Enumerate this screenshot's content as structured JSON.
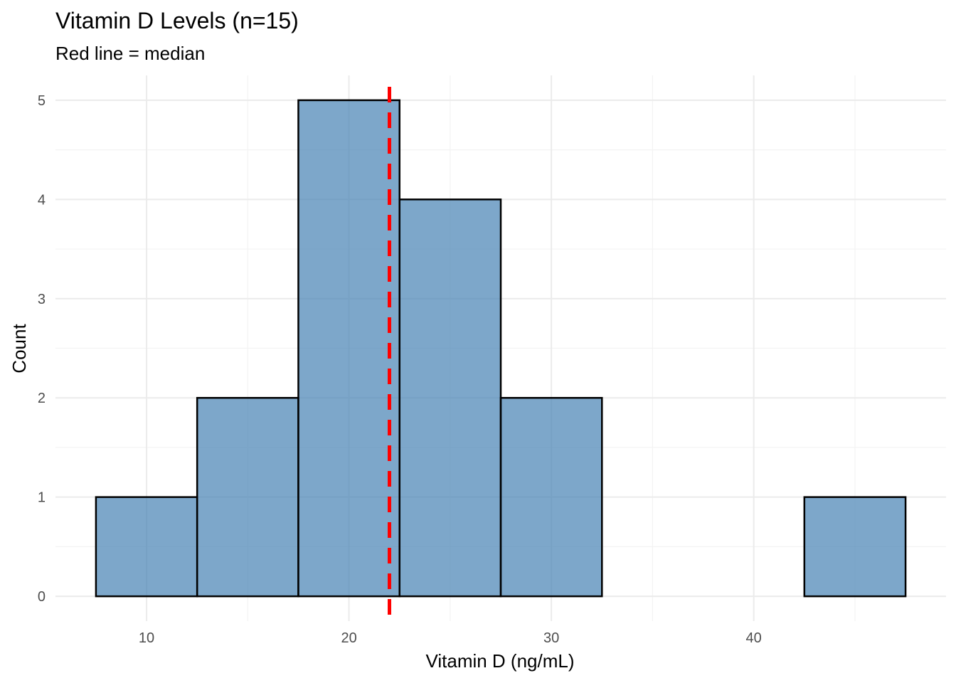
{
  "chart_data": {
    "type": "bar",
    "title": "Vitamin D Levels (n=15)",
    "subtitle": "Red line = median",
    "xlabel": "Vitamin D (ng/mL)",
    "ylabel": "Count",
    "bin_width": 5,
    "bins": [
      {
        "start": 7.5,
        "end": 12.5,
        "count": 1
      },
      {
        "start": 12.5,
        "end": 17.5,
        "count": 2
      },
      {
        "start": 17.5,
        "end": 22.5,
        "count": 5
      },
      {
        "start": 22.5,
        "end": 27.5,
        "count": 4
      },
      {
        "start": 27.5,
        "end": 32.5,
        "count": 2
      },
      {
        "start": 32.5,
        "end": 37.5,
        "count": 0
      },
      {
        "start": 37.5,
        "end": 42.5,
        "count": 0
      },
      {
        "start": 42.5,
        "end": 47.5,
        "count": 1
      }
    ],
    "median": 22,
    "xlim": [
      5.5,
      49.5
    ],
    "ylim": [
      -0.25,
      5.25
    ],
    "x_ticks": [
      10,
      20,
      30,
      40
    ],
    "x_tick_labels": [
      "10",
      "20",
      "30",
      "40"
    ],
    "y_ticks": [
      0,
      1,
      2,
      3,
      4,
      5
    ],
    "y_tick_labels": [
      "0",
      "1",
      "2",
      "3",
      "4",
      "5"
    ],
    "grid": true,
    "legend": "none",
    "bar_color": "#4682b4",
    "median_color": "#ff0000"
  }
}
